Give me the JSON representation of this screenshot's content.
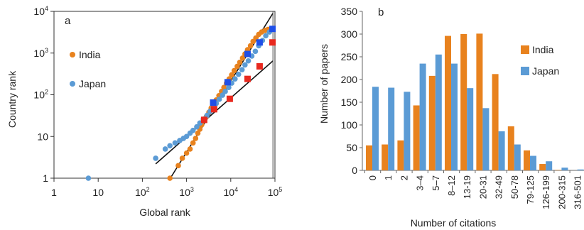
{
  "chart_data": [
    {
      "type": "scatter",
      "panel": "a",
      "xlabel": "Global rank",
      "ylabel": "Country rank",
      "xscale": "log",
      "yscale": "log",
      "xlim": [
        1,
        100000
      ],
      "ylim": [
        1,
        10000
      ],
      "x_ticks": [
        {
          "value": 1,
          "label": "1"
        },
        {
          "value": 10,
          "label": "10"
        },
        {
          "value": 100,
          "label": "10",
          "exp": "2"
        },
        {
          "value": 1000,
          "label": "10",
          "exp": "3"
        },
        {
          "value": 10000,
          "label": "10",
          "exp": "4"
        },
        {
          "value": 100000,
          "label": "10",
          "exp": "5"
        }
      ],
      "y_ticks": [
        {
          "value": 1,
          "label": "1"
        },
        {
          "value": 10,
          "label": "10"
        },
        {
          "value": 100,
          "label": "10",
          "exp": "2"
        },
        {
          "value": 1000,
          "label": "10",
          "exp": "3"
        },
        {
          "value": 10000,
          "label": "10",
          "exp": "4"
        }
      ],
      "legend_position": "left",
      "series": [
        {
          "name": "India",
          "color": "#e8821e",
          "points": [
            [
              420,
              1
            ],
            [
              650,
              2
            ],
            [
              800,
              3
            ],
            [
              1000,
              4
            ],
            [
              1200,
              5
            ],
            [
              1400,
              7
            ],
            [
              1600,
              9
            ],
            [
              1800,
              12
            ],
            [
              2000,
              15
            ],
            [
              2200,
              19
            ],
            [
              2500,
              24
            ],
            [
              2800,
              30
            ],
            [
              3200,
              38
            ],
            [
              3600,
              48
            ],
            [
              4100,
              60
            ],
            [
              4700,
              75
            ],
            [
              5400,
              95
            ],
            [
              6200,
              120
            ],
            [
              7000,
              150
            ],
            [
              8000,
              190
            ],
            [
              9200,
              240
            ],
            [
              10500,
              300
            ],
            [
              12000,
              380
            ],
            [
              14000,
              480
            ],
            [
              16000,
              600
            ],
            [
              18500,
              760
            ],
            [
              21000,
              950
            ],
            [
              24000,
              1200
            ],
            [
              28000,
              1500
            ],
            [
              32000,
              1900
            ],
            [
              37000,
              2300
            ],
            [
              43000,
              2800
            ],
            [
              50000,
              3200
            ],
            [
              60000,
              3500
            ],
            [
              70000,
              3700
            ],
            [
              85000,
              3800
            ]
          ]
        },
        {
          "name": "Japan",
          "color": "#5b9bd5",
          "points": [
            [
              6,
              1
            ],
            [
              200,
              3
            ],
            [
              330,
              5
            ],
            [
              420,
              6
            ],
            [
              550,
              7
            ],
            [
              700,
              8
            ],
            [
              850,
              9
            ],
            [
              1000,
              10
            ],
            [
              1200,
              12
            ],
            [
              1400,
              14
            ],
            [
              1700,
              17
            ],
            [
              2000,
              21
            ],
            [
              2400,
              26
            ],
            [
              2900,
              32
            ],
            [
              3400,
              40
            ],
            [
              4000,
              50
            ],
            [
              4700,
              62
            ],
            [
              5500,
              78
            ],
            [
              6500,
              98
            ],
            [
              7500,
              120
            ],
            [
              9000,
              150
            ],
            [
              10500,
              190
            ],
            [
              12500,
              240
            ],
            [
              15000,
              310
            ],
            [
              18000,
              400
            ],
            [
              21000,
              520
            ],
            [
              25000,
              650
            ],
            [
              30000,
              850
            ],
            [
              36000,
              1100
            ],
            [
              43000,
              1500
            ],
            [
              52000,
              2000
            ],
            [
              62000,
              2600
            ],
            [
              75000,
              3200
            ],
            [
              85000,
              3700
            ]
          ]
        }
      ],
      "markers": [
        {
          "series": "India",
          "points": [
            [
              2500,
              25
            ],
            [
              4200,
              45
            ],
            [
              9500,
              80
            ],
            [
              24000,
              240
            ],
            [
              45000,
              480
            ],
            [
              88000,
              1800
            ]
          ]
        },
        {
          "series": "Japan",
          "points": [
            [
              4000,
              65
            ],
            [
              8500,
              200
            ],
            [
              24000,
              950
            ],
            [
              45000,
              1800
            ],
            [
              88000,
              3800
            ]
          ]
        }
      ]
    },
    {
      "type": "bar",
      "panel": "b",
      "xlabel": "Number of citations",
      "ylabel": "Number of papers",
      "ylim": [
        0,
        350
      ],
      "y_ticks": [
        0,
        50,
        100,
        150,
        200,
        250,
        300,
        350
      ],
      "legend_position": "top-right",
      "categories": [
        "0",
        "1",
        "2",
        "3–4",
        "5–7",
        "8–12",
        "13-19",
        "20-31",
        "32-49",
        "50-78",
        "79-125",
        "126-199",
        "200-315",
        "316-501"
      ],
      "series": [
        {
          "name": "India",
          "color": "#e8821e",
          "values": [
            55,
            57,
            66,
            143,
            208,
            296,
            300,
            301,
            212,
            97,
            44,
            14,
            1,
            0
          ]
        },
        {
          "name": "Japan",
          "color": "#5b9bd5",
          "values": [
            184,
            182,
            173,
            235,
            255,
            235,
            181,
            137,
            86,
            57,
            32,
            20,
            6,
            2
          ]
        }
      ]
    }
  ]
}
